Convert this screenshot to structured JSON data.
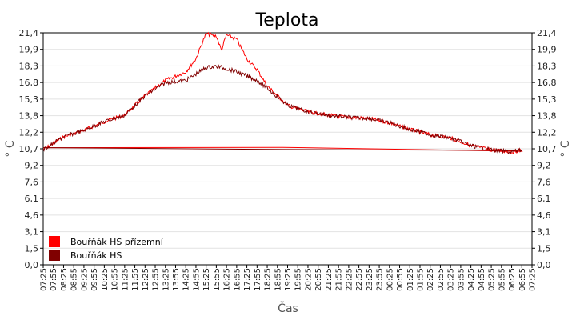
{
  "chart_data": {
    "type": "line",
    "title": "Teplota",
    "xlabel": "Čas",
    "ylabel": "° C",
    "ylabel_right": "° C",
    "ylim": [
      0,
      21.4
    ],
    "yticks": [
      "0,0",
      "1,5",
      "3,1",
      "4,6",
      "6,1",
      "7,6",
      "9,2",
      "10,7",
      "12,2",
      "13,8",
      "15,3",
      "16,8",
      "18,3",
      "19,9",
      "21,4"
    ],
    "xticks": [
      "07:25",
      "07:55",
      "08:25",
      "08:55",
      "09:25",
      "09:55",
      "10:25",
      "10:55",
      "11:25",
      "11:55",
      "12:25",
      "12:55",
      "13:25",
      "13:55",
      "14:25",
      "14:55",
      "15:25",
      "15:55",
      "16:25",
      "16:55",
      "17:25",
      "17:55",
      "18:25",
      "18:55",
      "19:25",
      "19:55",
      "20:25",
      "20:55",
      "21:25",
      "21:55",
      "22:25",
      "22:55",
      "23:25",
      "23:55",
      "00:25",
      "00:55",
      "01:25",
      "01:55",
      "02:25",
      "02:55",
      "03:25",
      "03:55",
      "04:25",
      "04:55",
      "05:25",
      "05:55",
      "06:25",
      "06:55",
      "07:25"
    ],
    "grid": true,
    "legend_position": "bottom-left",
    "series": [
      {
        "name": "Bouřňák HS přízemní",
        "color": "#ff0000",
        "x": [
          "07:25",
          "08:25",
          "09:25",
          "10:25",
          "11:25",
          "12:25",
          "13:25",
          "14:25",
          "14:55",
          "15:15",
          "15:25",
          "15:55",
          "16:10",
          "16:25",
          "16:55",
          "17:25",
          "17:55",
          "18:25",
          "19:25",
          "20:25",
          "21:25",
          "22:25",
          "23:25",
          "23:55",
          "00:25",
          "01:25",
          "02:25",
          "03:25",
          "04:25",
          "05:25",
          "06:25",
          "06:55",
          "07:25"
        ],
        "y": [
          10.6,
          11.8,
          12.4,
          13.2,
          13.8,
          15.6,
          17.0,
          17.8,
          19.0,
          20.6,
          21.3,
          21.1,
          19.8,
          21.2,
          20.8,
          19.0,
          18.0,
          16.5,
          14.7,
          14.1,
          13.8,
          13.6,
          13.5,
          13.3,
          13.1,
          12.5,
          12.0,
          11.7,
          11.0,
          10.6,
          10.4,
          10.6,
          10.8
        ]
      },
      {
        "name": "Bouřňák HS",
        "color": "#800000",
        "x": [
          "07:25",
          "08:25",
          "09:25",
          "10:25",
          "11:25",
          "12:25",
          "13:25",
          "14:25",
          "14:55",
          "15:25",
          "15:55",
          "16:25",
          "16:55",
          "17:25",
          "17:55",
          "18:25",
          "19:25",
          "20:25",
          "21:25",
          "22:25",
          "23:25",
          "23:55",
          "00:25",
          "01:25",
          "02:25",
          "03:25",
          "04:25",
          "05:25",
          "06:25",
          "06:55",
          "07:25"
        ],
        "y": [
          10.6,
          11.8,
          12.4,
          13.2,
          13.8,
          15.6,
          16.8,
          17.0,
          17.6,
          18.2,
          18.3,
          18.1,
          17.8,
          17.4,
          17.0,
          16.3,
          14.7,
          14.1,
          13.8,
          13.6,
          13.5,
          13.3,
          13.1,
          12.5,
          12.0,
          11.7,
          11.0,
          10.6,
          10.4,
          10.6,
          10.8
        ]
      }
    ]
  }
}
